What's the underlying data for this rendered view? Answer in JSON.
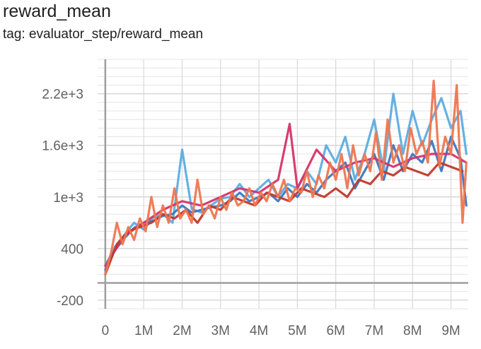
{
  "chart_title": "reward_mean",
  "chart_subtitle": "tag: evaluator_step/reward_mean",
  "chart_data": {
    "type": "line",
    "title": "reward_mean",
    "subtitle": "tag: evaluator_step/reward_mean",
    "xlabel": "",
    "ylabel": "",
    "xlim": [
      -200000,
      9450000
    ],
    "ylim": [
      -300,
      2600
    ],
    "x_ticks": [
      {
        "value": 0,
        "label": "0"
      },
      {
        "value": 1000000,
        "label": "1M"
      },
      {
        "value": 2000000,
        "label": "2M"
      },
      {
        "value": 3000000,
        "label": "3M"
      },
      {
        "value": 4000000,
        "label": "4M"
      },
      {
        "value": 5000000,
        "label": "5M"
      },
      {
        "value": 6000000,
        "label": "6M"
      },
      {
        "value": 7000000,
        "label": "7M"
      },
      {
        "value": 8000000,
        "label": "8M"
      },
      {
        "value": 9000000,
        "label": "9M"
      }
    ],
    "y_ticks": [
      {
        "value": -200,
        "label": "-200"
      },
      {
        "value": 400,
        "label": "400"
      },
      {
        "value": 1000,
        "label": "1e+3"
      },
      {
        "value": 1600,
        "label": "1.6e+3"
      },
      {
        "value": 2200,
        "label": "2.2e+3"
      }
    ],
    "grid": true,
    "legend": "none",
    "series": [
      {
        "color": "#5DADE2",
        "x": [
          0,
          250000,
          500000,
          750000,
          1000000,
          1250000,
          1500000,
          1750000,
          2000000,
          2250000,
          2500000,
          2750000,
          3000000,
          3250000,
          3500000,
          3750000,
          4000000,
          4250000,
          4500000,
          4750000,
          5000000,
          5250000,
          5500000,
          5750000,
          6000000,
          6250000,
          6500000,
          6750000,
          7000000,
          7250000,
          7500000,
          7750000,
          8000000,
          8250000,
          8500000,
          8750000,
          9000000,
          9250000,
          9400000
        ],
        "y": [
          200,
          420,
          560,
          700,
          620,
          760,
          800,
          700,
          1550,
          860,
          820,
          900,
          980,
          1000,
          1150,
          1000,
          1100,
          1200,
          1000,
          1150,
          1100,
          1300,
          1150,
          1600,
          1400,
          1700,
          1200,
          1500,
          1900,
          1300,
          2200,
          1500,
          2000,
          1600,
          1900,
          2150,
          1800,
          2000,
          1500
        ]
      },
      {
        "color": "#3A78C2",
        "x": [
          0,
          250000,
          500000,
          750000,
          1000000,
          1250000,
          1500000,
          1750000,
          2000000,
          2250000,
          2500000,
          2750000,
          3000000,
          3250000,
          3500000,
          3750000,
          4000000,
          4250000,
          4500000,
          4750000,
          5000000,
          5250000,
          5500000,
          5750000,
          6000000,
          6250000,
          6500000,
          6750000,
          7000000,
          7250000,
          7500000,
          7750000,
          8000000,
          8250000,
          8500000,
          8750000,
          9000000,
          9250000,
          9400000
        ],
        "y": [
          150,
          380,
          520,
          640,
          700,
          720,
          780,
          800,
          900,
          820,
          850,
          880,
          900,
          950,
          1050,
          950,
          1000,
          1050,
          950,
          1100,
          1000,
          1150,
          1050,
          1200,
          1300,
          1400,
          1100,
          1300,
          1500,
          1200,
          1600,
          1300,
          1500,
          1400,
          1650,
          1300,
          1700,
          1450,
          900
        ]
      },
      {
        "color": "#D6336C",
        "x": [
          0,
          500000,
          1000000,
          1500000,
          2000000,
          2500000,
          3000000,
          3500000,
          4000000,
          4500000,
          4800000,
          5000000,
          5500000,
          6000000,
          6500000,
          7000000,
          7500000,
          8000000,
          8500000,
          9000000,
          9400000
        ],
        "y": [
          200,
          550,
          700,
          850,
          950,
          900,
          1000,
          1100,
          1050,
          1200,
          1850,
          1100,
          1550,
          1300,
          1400,
          1450,
          1350,
          1450,
          1500,
          1500,
          1400
        ]
      },
      {
        "color": "#C0392B",
        "x": [
          0,
          300000,
          600000,
          900000,
          1200000,
          1500000,
          1800000,
          2100000,
          2400000,
          2700000,
          3000000,
          3300000,
          3600000,
          3900000,
          4200000,
          4500000,
          4800000,
          5100000,
          5400000,
          5700000,
          6000000,
          6300000,
          6600000,
          6900000,
          7200000,
          7500000,
          7800000,
          8100000,
          8400000,
          8700000,
          9000000,
          9300000
        ],
        "y": [
          100,
          450,
          600,
          650,
          700,
          800,
          750,
          850,
          700,
          900,
          850,
          1000,
          950,
          900,
          1050,
          1000,
          950,
          1100,
          1050,
          1000,
          1100,
          1000,
          1200,
          1150,
          1300,
          1250,
          1350,
          1300,
          1250,
          1400,
          1350,
          1300
        ]
      },
      {
        "color": "#EE7650",
        "x": [
          0,
          150000,
          300000,
          450000,
          600000,
          750000,
          900000,
          1050000,
          1200000,
          1350000,
          1500000,
          1650000,
          1800000,
          1950000,
          2100000,
          2250000,
          2400000,
          2550000,
          2700000,
          2850000,
          3000000,
          3150000,
          3300000,
          3450000,
          3600000,
          3750000,
          3900000,
          4050000,
          4200000,
          4350000,
          4500000,
          4650000,
          4800000,
          4950000,
          5100000,
          5250000,
          5400000,
          5550000,
          5700000,
          5850000,
          6000000,
          6150000,
          6300000,
          6450000,
          6600000,
          6750000,
          6900000,
          7050000,
          7200000,
          7350000,
          7500000,
          7650000,
          7800000,
          7950000,
          8100000,
          8250000,
          8400000,
          8550000,
          8700000,
          8850000,
          9000000,
          9150000,
          9300000,
          9400000
        ],
        "y": [
          100,
          350,
          700,
          450,
          650,
          500,
          750,
          600,
          1000,
          650,
          900,
          700,
          1100,
          750,
          850,
          700,
          1200,
          800,
          900,
          750,
          1000,
          850,
          1050,
          900,
          950,
          1100,
          900,
          1050,
          950,
          1150,
          1000,
          1200,
          950,
          1100,
          1050,
          1300,
          1000,
          1250,
          1100,
          1400,
          1200,
          1500,
          1100,
          1600,
          1250,
          1500,
          1300,
          1750,
          1200,
          1900,
          1400,
          1600,
          1300,
          1800,
          1500,
          1650,
          1400,
          2350,
          1350,
          1700,
          1500,
          2300,
          700,
          1400
        ]
      }
    ]
  }
}
